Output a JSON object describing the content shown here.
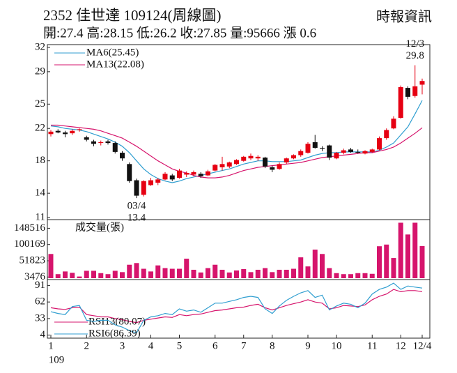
{
  "header": {
    "title": "2352  佳世達 109124(周線圖)",
    "quote": "開:27.4 高:28.15 低:26.2 收:27.85 量:95666 漲 0.6",
    "source": "時報資訊"
  },
  "chart_data": [
    {
      "type": "candlestick",
      "open": [
        21.3,
        21.7,
        21.5,
        21.4,
        21.8,
        20.9,
        20.4,
        20.2,
        20.4,
        20.2,
        19.0,
        17.6,
        15.6,
        13.8,
        15.0,
        15.3,
        15.7,
        16.2,
        15.9,
        16.3,
        16.3,
        16.4,
        16.2,
        16.8,
        17.2,
        17.3,
        17.6,
        18.0,
        18.3,
        18.3,
        18.4,
        17.2,
        17.0,
        17.8,
        18.3,
        18.7,
        19.0,
        20.3,
        19.6,
        19.9,
        18.3,
        19.0,
        19.4,
        19.1,
        18.9,
        19.1,
        19.4,
        20.8,
        22.0,
        23.3,
        27.0,
        26.0,
        27.4
      ],
      "high": [
        21.8,
        21.9,
        21.7,
        21.9,
        22.0,
        21.1,
        20.6,
        20.5,
        20.6,
        20.4,
        19.2,
        17.8,
        15.8,
        15.6,
        15.9,
        15.9,
        16.6,
        16.4,
        17.0,
        16.7,
        16.8,
        16.6,
        16.9,
        17.6,
        18.5,
        17.9,
        18.2,
        18.6,
        18.9,
        18.7,
        18.5,
        17.4,
        17.8,
        18.4,
        18.8,
        19.4,
        20.3,
        21.2,
        19.8,
        20.0,
        19.1,
        19.5,
        19.6,
        19.4,
        19.3,
        19.5,
        21.0,
        22.0,
        23.5,
        27.3,
        27.2,
        29.8,
        28.15
      ],
      "low": [
        21.0,
        21.4,
        20.9,
        21.2,
        21.6,
        20.4,
        19.8,
        19.9,
        20.0,
        18.9,
        18.0,
        15.3,
        13.4,
        13.6,
        14.9,
        15.0,
        15.6,
        15.5,
        15.8,
        16.0,
        16.1,
        15.9,
        16.1,
        16.7,
        16.8,
        17.1,
        17.5,
        17.9,
        18.1,
        18.0,
        17.1,
        16.6,
        16.9,
        17.6,
        18.2,
        18.5,
        18.9,
        19.5,
        19.2,
        18.1,
        18.2,
        18.8,
        19.0,
        18.9,
        18.8,
        19.0,
        19.3,
        20.6,
        21.9,
        23.2,
        25.6,
        25.8,
        26.2
      ],
      "close": [
        21.6,
        21.5,
        21.3,
        21.7,
        21.9,
        20.6,
        20.1,
        20.3,
        20.2,
        19.1,
        18.3,
        15.5,
        13.7,
        15.5,
        15.6,
        15.7,
        16.4,
        15.7,
        16.8,
        16.5,
        16.6,
        16.1,
        16.7,
        17.5,
        17.6,
        17.8,
        18.1,
        18.5,
        18.6,
        18.5,
        17.3,
        16.9,
        17.6,
        18.3,
        18.7,
        19.2,
        20.1,
        19.6,
        19.5,
        18.4,
        19.0,
        19.3,
        19.1,
        19.0,
        19.2,
        19.4,
        20.8,
        21.8,
        23.2,
        27.1,
        25.9,
        27.2,
        27.85
      ],
      "up_color": "#e60012",
      "down_color": "#111111",
      "series": [
        {
          "name": "MA6(25.45)",
          "color": "#2f9ed0",
          "values": [
            22.3,
            22.2,
            22.0,
            21.9,
            21.8,
            21.6,
            21.3,
            21.0,
            20.7,
            20.3,
            19.8,
            19.0,
            18.0,
            17.0,
            16.3,
            15.8,
            15.5,
            15.3,
            15.5,
            15.8,
            16.0,
            16.2,
            16.4,
            16.6,
            16.8,
            17.0,
            17.3,
            17.6,
            17.8,
            18.0,
            18.0,
            17.9,
            17.9,
            17.9,
            18.0,
            18.1,
            18.4,
            18.7,
            18.9,
            19.0,
            19.0,
            19.1,
            19.1,
            19.1,
            19.1,
            19.1,
            19.3,
            19.7,
            20.2,
            21.2,
            22.2,
            23.8,
            25.45
          ]
        },
        {
          "name": "MA13(22.08)",
          "color": "#d6146c",
          "values": [
            22.4,
            22.4,
            22.3,
            22.2,
            22.1,
            22.0,
            21.9,
            21.7,
            21.4,
            21.1,
            20.8,
            20.3,
            19.8,
            19.2,
            18.6,
            18.0,
            17.5,
            17.0,
            16.7,
            16.5,
            16.2,
            16.0,
            15.9,
            15.9,
            16.0,
            16.2,
            16.5,
            16.8,
            17.0,
            17.2,
            17.3,
            17.4,
            17.5,
            17.6,
            17.7,
            17.8,
            18.0,
            18.2,
            18.4,
            18.5,
            18.6,
            18.7,
            18.8,
            18.9,
            19.0,
            19.0,
            19.2,
            19.4,
            19.7,
            20.2,
            20.8,
            21.4,
            22.08
          ]
        }
      ],
      "ylim": [
        11,
        32
      ],
      "yticks": [
        11,
        14,
        18,
        22,
        25,
        29,
        32
      ],
      "annotations": [
        {
          "label": "03/4",
          "value": 13.4,
          "at": "low"
        },
        {
          "label": "12/3",
          "value": 29.8,
          "at": "high"
        }
      ]
    },
    {
      "type": "bar",
      "series": [
        {
          "name": "成交量(張)",
          "color": "#d6146c",
          "values": [
            72000,
            12000,
            20000,
            16000,
            5000,
            22000,
            22000,
            15000,
            12000,
            22000,
            18000,
            40000,
            45000,
            28000,
            20000,
            38000,
            30000,
            28000,
            28000,
            58000,
            25000,
            17000,
            30000,
            40000,
            25000,
            17000,
            23000,
            27000,
            18000,
            25000,
            30000,
            18000,
            25000,
            25000,
            28000,
            62000,
            35000,
            85000,
            72000,
            30000,
            15000,
            12000,
            12000,
            15000,
            15000,
            13000,
            95000,
            100000,
            60000,
            165000,
            130000,
            165000,
            95666
          ]
        }
      ],
      "ylim": [
        0,
        168000
      ],
      "yticks": [
        3476,
        51823,
        100169,
        148516
      ]
    },
    {
      "type": "line",
      "categories": [
        "1",
        null,
        null,
        null,
        null,
        "2",
        null,
        null,
        null,
        null,
        "3",
        null,
        null,
        null,
        "4",
        null,
        null,
        null,
        "5",
        null,
        null,
        null,
        null,
        "6",
        null,
        null,
        null,
        "7",
        null,
        null,
        null,
        "8",
        null,
        null,
        null,
        null,
        "9",
        null,
        null,
        null,
        "10",
        null,
        null,
        null,
        null,
        "11",
        null,
        null,
        null,
        "12",
        null,
        null,
        "12/4"
      ],
      "x_sublabel": "109",
      "series": [
        {
          "name": "RSI13(80.07)",
          "color": "#d6146c",
          "values": [
            52,
            50,
            49,
            52,
            53,
            40,
            38,
            36,
            36,
            33,
            31,
            28,
            26,
            30,
            32,
            34,
            36,
            35,
            40,
            38,
            40,
            41,
            44,
            47,
            48,
            50,
            52,
            53,
            56,
            58,
            52,
            48,
            52,
            56,
            59,
            62,
            66,
            62,
            60,
            50,
            52,
            56,
            55,
            54,
            57,
            66,
            72,
            76,
            84,
            80,
            82,
            82,
            80.07
          ]
        },
        {
          "name": "RSI6(86.39)",
          "color": "#2f9ed0",
          "values": [
            45,
            42,
            40,
            54,
            56,
            30,
            28,
            30,
            30,
            22,
            18,
            12,
            8,
            30,
            36,
            38,
            42,
            40,
            50,
            46,
            48,
            44,
            52,
            60,
            60,
            63,
            66,
            70,
            72,
            70,
            50,
            42,
            55,
            65,
            72,
            78,
            82,
            70,
            74,
            48,
            55,
            60,
            58,
            52,
            60,
            76,
            84,
            88,
            95,
            84,
            90,
            88,
            86.39
          ]
        }
      ],
      "ylim": [
        0,
        100
      ],
      "yticks": [
        4,
        33,
        62,
        91
      ]
    }
  ]
}
